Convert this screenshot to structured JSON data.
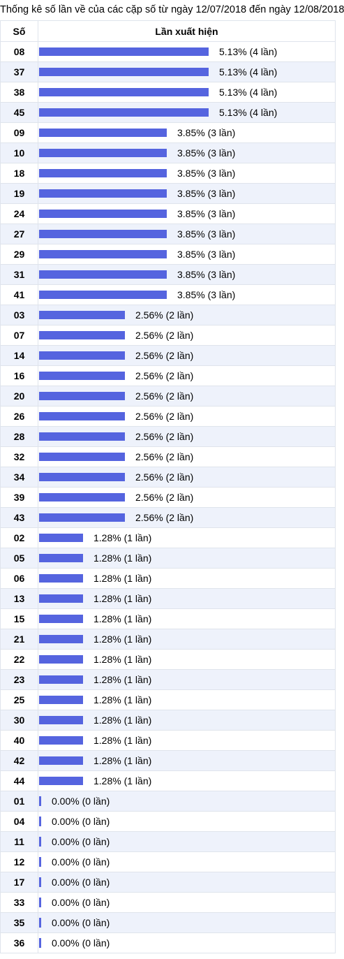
{
  "caption": "Thống kê số lần về của các cặp số từ ngày 12/07/2018 đến ngày 12/08/2018",
  "header": {
    "col_number": "Số",
    "col_freq": "Lần xuất hiện"
  },
  "colors": {
    "bar": "#5564df",
    "row_alt": "#eef2fb",
    "border": "#dfe4ec"
  },
  "chart_data": {
    "type": "bar",
    "orientation": "horizontal",
    "title": "Thống kê số lần về của các cặp số từ ngày 12/07/2018 đến ngày 12/08/2018",
    "xmax_count": 4,
    "rows": [
      {
        "num": "08",
        "pct": 5.13,
        "count": 4,
        "label": "5.13% (4 lần)"
      },
      {
        "num": "37",
        "pct": 5.13,
        "count": 4,
        "label": "5.13% (4 lần)"
      },
      {
        "num": "38",
        "pct": 5.13,
        "count": 4,
        "label": "5.13% (4 lần)"
      },
      {
        "num": "45",
        "pct": 5.13,
        "count": 4,
        "label": "5.13% (4 lần)"
      },
      {
        "num": "09",
        "pct": 3.85,
        "count": 3,
        "label": "3.85% (3 lần)"
      },
      {
        "num": "10",
        "pct": 3.85,
        "count": 3,
        "label": "3.85% (3 lần)"
      },
      {
        "num": "18",
        "pct": 3.85,
        "count": 3,
        "label": "3.85% (3 lần)"
      },
      {
        "num": "19",
        "pct": 3.85,
        "count": 3,
        "label": "3.85% (3 lần)"
      },
      {
        "num": "24",
        "pct": 3.85,
        "count": 3,
        "label": "3.85% (3 lần)"
      },
      {
        "num": "27",
        "pct": 3.85,
        "count": 3,
        "label": "3.85% (3 lần)"
      },
      {
        "num": "29",
        "pct": 3.85,
        "count": 3,
        "label": "3.85% (3 lần)"
      },
      {
        "num": "31",
        "pct": 3.85,
        "count": 3,
        "label": "3.85% (3 lần)"
      },
      {
        "num": "41",
        "pct": 3.85,
        "count": 3,
        "label": "3.85% (3 lần)"
      },
      {
        "num": "03",
        "pct": 2.56,
        "count": 2,
        "label": "2.56% (2 lần)"
      },
      {
        "num": "07",
        "pct": 2.56,
        "count": 2,
        "label": "2.56% (2 lần)"
      },
      {
        "num": "14",
        "pct": 2.56,
        "count": 2,
        "label": "2.56% (2 lần)"
      },
      {
        "num": "16",
        "pct": 2.56,
        "count": 2,
        "label": "2.56% (2 lần)"
      },
      {
        "num": "20",
        "pct": 2.56,
        "count": 2,
        "label": "2.56% (2 lần)"
      },
      {
        "num": "26",
        "pct": 2.56,
        "count": 2,
        "label": "2.56% (2 lần)"
      },
      {
        "num": "28",
        "pct": 2.56,
        "count": 2,
        "label": "2.56% (2 lần)"
      },
      {
        "num": "32",
        "pct": 2.56,
        "count": 2,
        "label": "2.56% (2 lần)"
      },
      {
        "num": "34",
        "pct": 2.56,
        "count": 2,
        "label": "2.56% (2 lần)"
      },
      {
        "num": "39",
        "pct": 2.56,
        "count": 2,
        "label": "2.56% (2 lần)"
      },
      {
        "num": "43",
        "pct": 2.56,
        "count": 2,
        "label": "2.56% (2 lần)"
      },
      {
        "num": "02",
        "pct": 1.28,
        "count": 1,
        "label": "1.28% (1 lần)"
      },
      {
        "num": "05",
        "pct": 1.28,
        "count": 1,
        "label": "1.28% (1 lần)"
      },
      {
        "num": "06",
        "pct": 1.28,
        "count": 1,
        "label": "1.28% (1 lần)"
      },
      {
        "num": "13",
        "pct": 1.28,
        "count": 1,
        "label": "1.28% (1 lần)"
      },
      {
        "num": "15",
        "pct": 1.28,
        "count": 1,
        "label": "1.28% (1 lần)"
      },
      {
        "num": "21",
        "pct": 1.28,
        "count": 1,
        "label": "1.28% (1 lần)"
      },
      {
        "num": "22",
        "pct": 1.28,
        "count": 1,
        "label": "1.28% (1 lần)"
      },
      {
        "num": "23",
        "pct": 1.28,
        "count": 1,
        "label": "1.28% (1 lần)"
      },
      {
        "num": "25",
        "pct": 1.28,
        "count": 1,
        "label": "1.28% (1 lần)"
      },
      {
        "num": "30",
        "pct": 1.28,
        "count": 1,
        "label": "1.28% (1 lần)"
      },
      {
        "num": "40",
        "pct": 1.28,
        "count": 1,
        "label": "1.28% (1 lần)"
      },
      {
        "num": "42",
        "pct": 1.28,
        "count": 1,
        "label": "1.28% (1 lần)"
      },
      {
        "num": "44",
        "pct": 1.28,
        "count": 1,
        "label": "1.28% (1 lần)"
      },
      {
        "num": "01",
        "pct": 0.0,
        "count": 0,
        "label": "0.00% (0 lần)"
      },
      {
        "num": "04",
        "pct": 0.0,
        "count": 0,
        "label": "0.00% (0 lần)"
      },
      {
        "num": "11",
        "pct": 0.0,
        "count": 0,
        "label": "0.00% (0 lần)"
      },
      {
        "num": "12",
        "pct": 0.0,
        "count": 0,
        "label": "0.00% (0 lần)"
      },
      {
        "num": "17",
        "pct": 0.0,
        "count": 0,
        "label": "0.00% (0 lần)"
      },
      {
        "num": "33",
        "pct": 0.0,
        "count": 0,
        "label": "0.00% (0 lần)"
      },
      {
        "num": "35",
        "pct": 0.0,
        "count": 0,
        "label": "0.00% (0 lần)"
      },
      {
        "num": "36",
        "pct": 0.0,
        "count": 0,
        "label": "0.00% (0 lần)"
      }
    ]
  }
}
